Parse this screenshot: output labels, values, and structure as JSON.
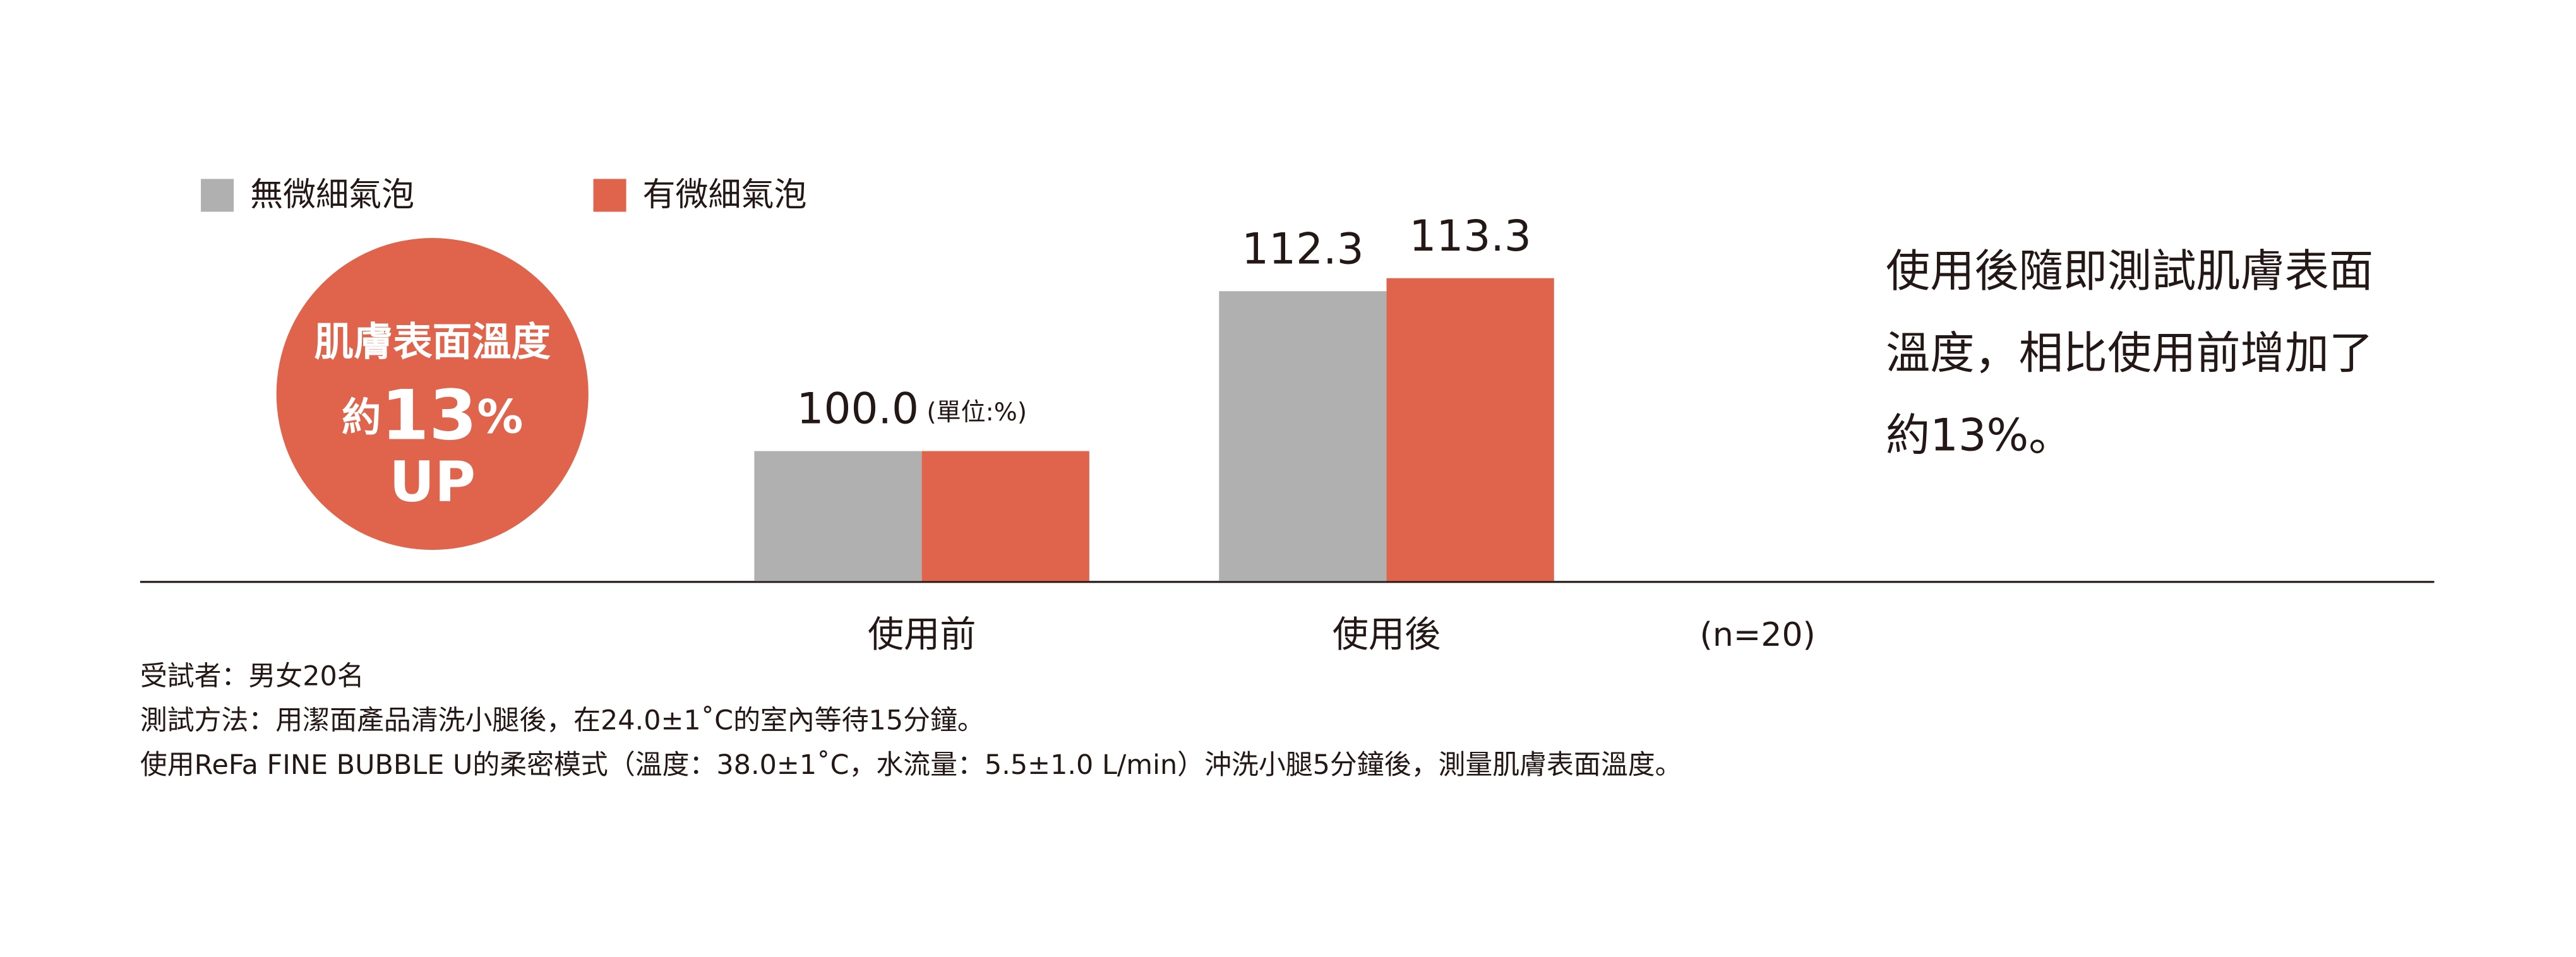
{
  "chart_data": {
    "type": "bar",
    "categories": [
      "使用前",
      "使用後"
    ],
    "series": [
      {
        "name": "無微細氣泡",
        "color": "#b1b0b0",
        "values": [
          100,
          112.3
        ],
        "value_labels": [
          "100.0",
          "112.3"
        ]
      },
      {
        "name": "有微細氣泡",
        "color": "#e0634b",
        "values": [
          100,
          113.3
        ],
        "value_labels": [
          null,
          "113.3"
        ]
      }
    ],
    "ylim": [
      90,
      115
    ],
    "unit_note": "(單位:%)",
    "sample_note": "(n=20)",
    "badge": {
      "line1": "肌膚表面溫度",
      "prefix": "約",
      "number": "13",
      "unit": "%",
      "line3": "UP"
    },
    "description": [
      "使用後隨即測試肌膚表面",
      "溫度，相比使用前增加了",
      "約13%。"
    ],
    "footnotes": [
      "受試者：男女20名",
      "測試方法：用潔面產品清洗小腿後，在24.0±1˚C的室內等待15分鐘。",
      "使用ReFa FINE BUBBLE U的柔密模式（溫度：38.0±1˚C，水流量：5.5±1.0 L/min）沖洗小腿5分鐘後，測量肌膚表面溫度。"
    ]
  }
}
